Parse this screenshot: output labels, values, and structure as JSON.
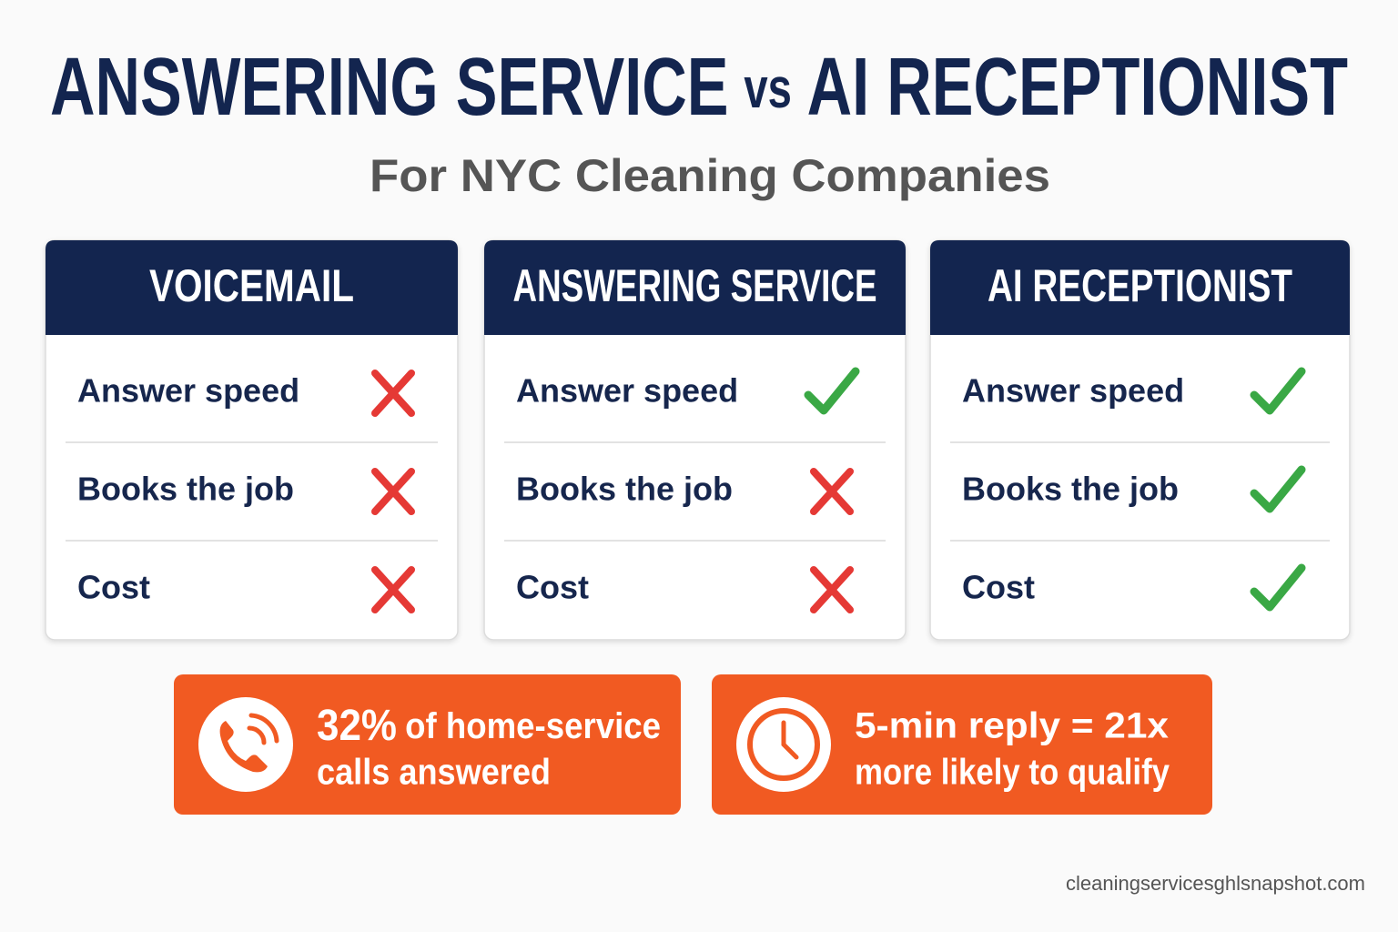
{
  "title": {
    "left": "ANSWERING SERVICE",
    "middle": "vs",
    "right": "AI RECEPTIONIST"
  },
  "subtitle": "For NYC Cleaning Companies",
  "columns": [
    {
      "heading": "VOICEMAIL",
      "rows": [
        {
          "label": "Answer speed",
          "pass": false
        },
        {
          "label": "Books the job",
          "pass": false
        },
        {
          "label": "Cost",
          "pass": false
        }
      ]
    },
    {
      "heading": "ANSWERING SERVICE",
      "rows": [
        {
          "label": "Answer speed",
          "pass": true
        },
        {
          "label": "Books the job",
          "pass": false
        },
        {
          "label": "Cost",
          "pass": false
        }
      ]
    },
    {
      "heading": "AI RECEPTIONIST",
      "rows": [
        {
          "label": "Answer speed",
          "pass": true
        },
        {
          "label": "Books the job",
          "pass": true
        },
        {
          "label": "Cost",
          "pass": true
        }
      ]
    }
  ],
  "stats": [
    {
      "emphasis": "32%",
      "lines": [
        "of home-service",
        "calls answered"
      ]
    },
    {
      "lines": [
        "5-min reply = 21x",
        "more likely to qualify"
      ]
    }
  ],
  "footer": "cleaningservicesghlsnapshot.com"
}
